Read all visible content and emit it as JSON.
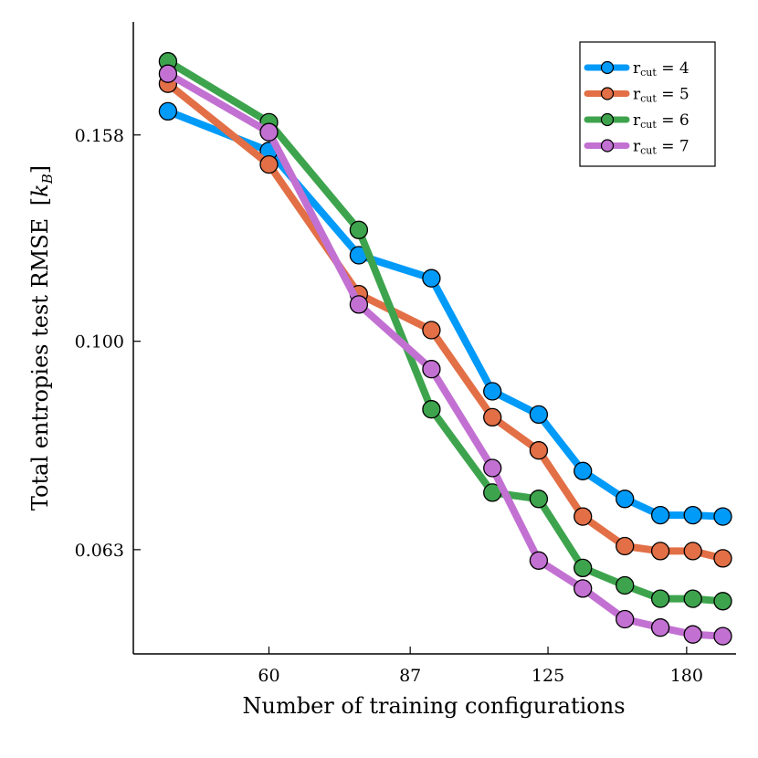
{
  "chart_data": {
    "type": "line",
    "scale": "log-log",
    "title": "",
    "xlabel": "Number of training configurations",
    "ylabel": "Total entropies test RMSE",
    "ylabel_unit": "[kB]",
    "x": [
      46,
      60,
      76,
      92,
      108,
      122,
      137,
      153,
      168,
      183,
      198
    ],
    "x_ticks": [
      {
        "value": 60,
        "label": "60"
      },
      {
        "value": 87,
        "label": "87"
      },
      {
        "value": 125,
        "label": "125"
      },
      {
        "value": 180,
        "label": "180"
      }
    ],
    "y_ticks": [
      {
        "value": 0.063,
        "label": "0.063"
      },
      {
        "value": 0.1,
        "label": "0.100"
      },
      {
        "value": 0.158,
        "label": "0.158"
      }
    ],
    "xlim": [
      42,
      205
    ],
    "ylim": [
      0.05,
      0.203
    ],
    "legend_position": "top-right",
    "series": [
      {
        "name": "r_cut = 4",
        "legend_base": "r",
        "legend_sub": "cut",
        "legend_rest": " = 4",
        "color": "#009af9",
        "values": [
          0.1665,
          0.1525,
          0.121,
          0.115,
          0.0895,
          0.085,
          0.075,
          0.0705,
          0.068,
          0.068,
          0.0678
        ]
      },
      {
        "name": "r_cut = 5",
        "legend_base": "r",
        "legend_sub": "cut",
        "legend_rest": " = 5",
        "color": "#e26f46",
        "values": [
          0.177,
          0.148,
          0.111,
          0.1025,
          0.0845,
          0.0785,
          0.0678,
          0.0635,
          0.0628,
          0.0628,
          0.0618
        ]
      },
      {
        "name": "r_cut = 6",
        "legend_base": "r",
        "legend_sub": "cut",
        "legend_rest": " = 6",
        "color": "#3da44d",
        "values": [
          0.186,
          0.1625,
          0.128,
          0.086,
          0.0715,
          0.0705,
          0.0605,
          0.0582,
          0.0565,
          0.0565,
          0.0562
        ]
      },
      {
        "name": "r_cut = 7",
        "legend_base": "r",
        "legend_sub": "cut",
        "legend_rest": " = 7",
        "color": "#c271d2",
        "values": [
          0.181,
          0.159,
          0.1085,
          0.094,
          0.0755,
          0.0615,
          0.0578,
          0.054,
          0.053,
          0.0522,
          0.052
        ]
      }
    ]
  }
}
